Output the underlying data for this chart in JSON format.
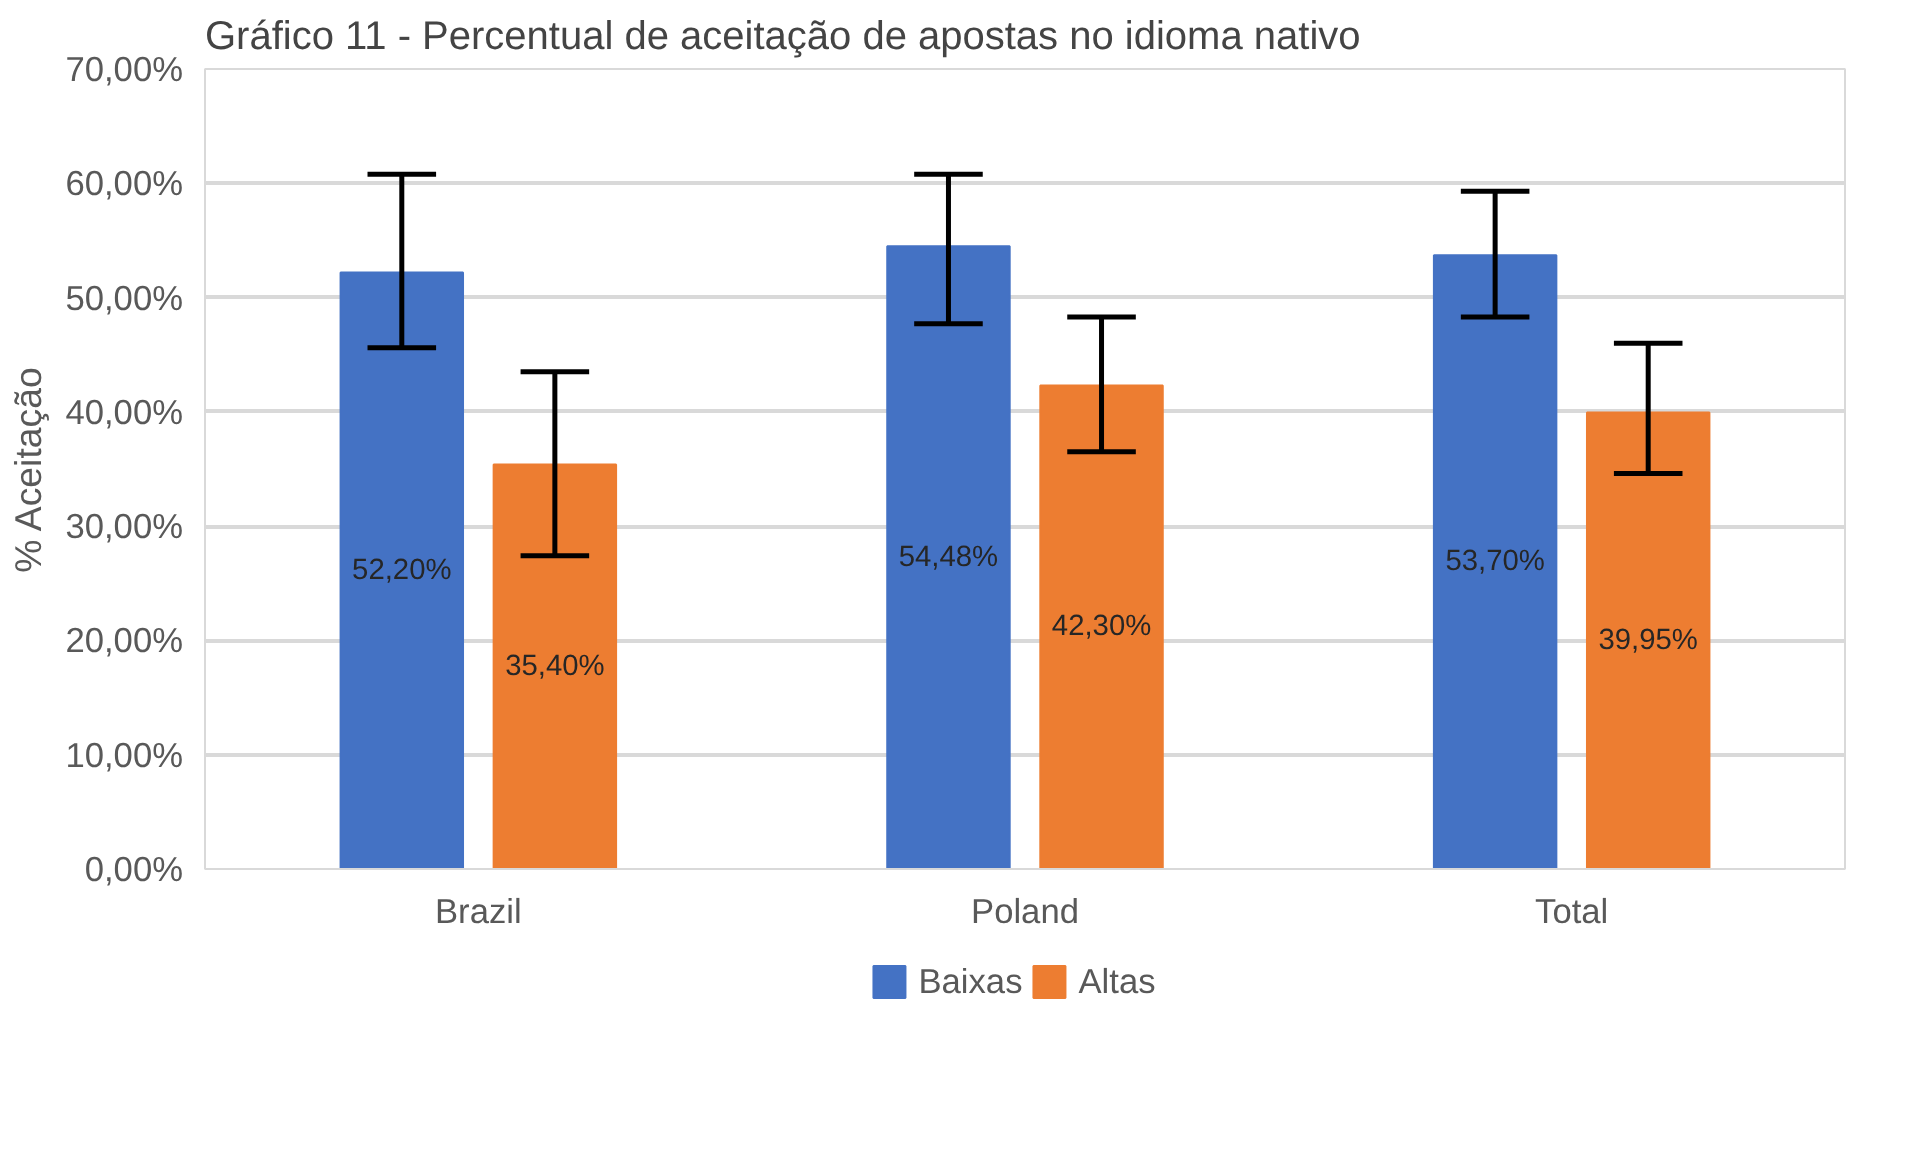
{
  "chart_data": {
    "type": "bar",
    "title": "Gráfico 11 - Percentual de aceitação de apostas no idioma nativo",
    "ylabel": "% Aceitação",
    "categories": [
      "Brazil",
      "Poland",
      "Total"
    ],
    "series": [
      {
        "name": "Baixas",
        "color": "#4472c4",
        "values": [
          52.2,
          54.48,
          53.7
        ],
        "errors": [
          [
            45.6,
            60.8
          ],
          [
            47.7,
            60.8
          ],
          [
            48.3,
            59.3
          ]
        ],
        "value_labels": [
          "52,20%",
          "54,48%",
          "53,70%"
        ]
      },
      {
        "name": "Altas",
        "color": "#ed7d31",
        "values": [
          35.4,
          42.3,
          39.95
        ],
        "errors": [
          [
            27.4,
            43.5
          ],
          [
            36.5,
            48.3
          ],
          [
            34.6,
            46.0
          ]
        ],
        "value_labels": [
          "35,40%",
          "42,30%",
          "39,95%"
        ]
      }
    ],
    "ylim": [
      0,
      70
    ],
    "yticks": [
      {
        "value": 0,
        "label": "0,00%"
      },
      {
        "value": 10,
        "label": "10,00%"
      },
      {
        "value": 20,
        "label": "20,00%"
      },
      {
        "value": 30,
        "label": "30,00%"
      },
      {
        "value": 40,
        "label": "40,00%"
      },
      {
        "value": 50,
        "label": "50,00%"
      },
      {
        "value": 60,
        "label": "60,00%"
      },
      {
        "value": 70,
        "label": "70,00%"
      }
    ],
    "grid": "y",
    "legend": "bottom"
  }
}
